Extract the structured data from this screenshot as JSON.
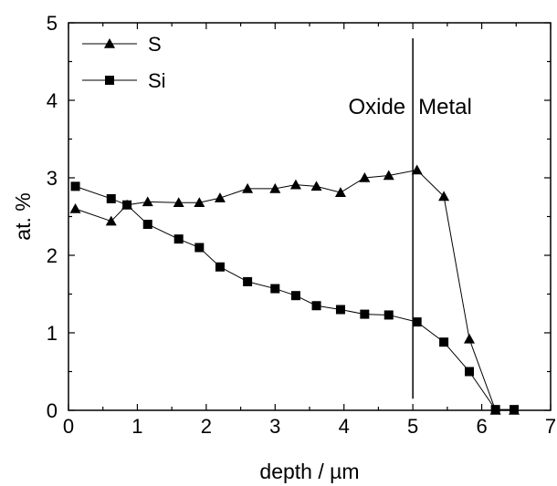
{
  "chart_data": {
    "type": "line",
    "xlabel": "depth / µm",
    "ylabel": "at. %",
    "xlim": [
      0,
      7
    ],
    "ylim": [
      0,
      5
    ],
    "x_ticks": [
      "0",
      "1",
      "2",
      "3",
      "4",
      "5",
      "6",
      "7"
    ],
    "y_ticks": [
      "0",
      "1",
      "2",
      "3",
      "4",
      "5"
    ],
    "legend_position": "top-left",
    "series": [
      {
        "name": "S",
        "marker": "triangle",
        "color": "#000000",
        "x": [
          0.1,
          0.62,
          0.85,
          1.15,
          1.6,
          1.9,
          2.2,
          2.6,
          3.0,
          3.3,
          3.6,
          3.95,
          4.3,
          4.65,
          5.06,
          5.45,
          5.82,
          6.2,
          6.47
        ],
        "y": [
          2.6,
          2.44,
          2.65,
          2.69,
          2.68,
          2.68,
          2.74,
          2.86,
          2.86,
          2.91,
          2.89,
          2.81,
          3.0,
          3.03,
          3.1,
          2.76,
          0.92,
          0.0,
          0.0
        ]
      },
      {
        "name": "Si",
        "marker": "square",
        "color": "#000000",
        "x": [
          0.1,
          0.62,
          0.85,
          1.15,
          1.6,
          1.9,
          2.2,
          2.6,
          3.0,
          3.3,
          3.6,
          3.95,
          4.3,
          4.65,
          5.06,
          5.45,
          5.82,
          6.2,
          6.47
        ],
        "y": [
          2.89,
          2.73,
          2.65,
          2.4,
          2.21,
          2.1,
          1.85,
          1.66,
          1.57,
          1.48,
          1.35,
          1.3,
          1.24,
          1.23,
          1.14,
          0.88,
          0.5,
          0.01,
          0.01
        ]
      }
    ],
    "boundary": {
      "x": 5.0,
      "y_range": [
        0.15,
        4.8
      ],
      "left_label": "Oxide",
      "right_label": "Metal"
    }
  }
}
